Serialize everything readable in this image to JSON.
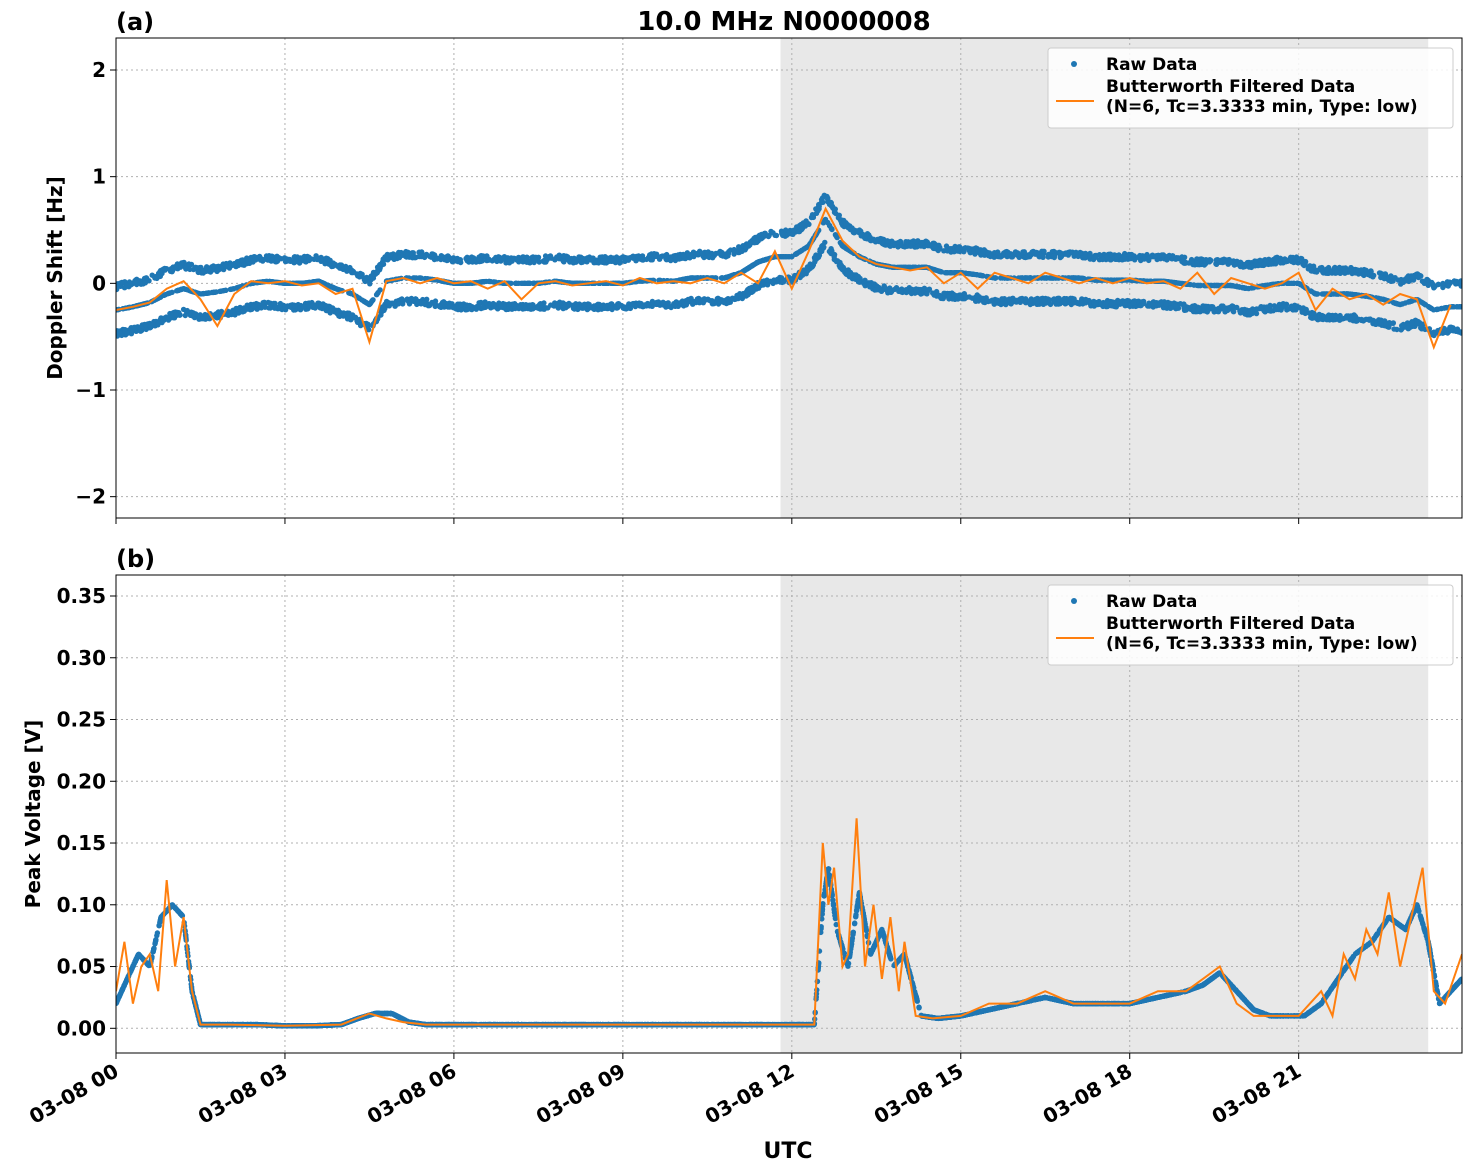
{
  "figure": {
    "title": "10.0 MHz N0000008",
    "xlabel": "UTC"
  },
  "colors": {
    "raw": "#1f77b4",
    "filtered": "#ff7f0e",
    "shade": "#e8e8e8",
    "grid": "#b0b0b0"
  },
  "chart_data": [
    {
      "type": "scatter",
      "panel_label": "(a)",
      "ylabel": "Doppler Shift [Hz]",
      "x_unit": "hours UTC on 03-08",
      "xlim": [
        0,
        23.9
      ],
      "ylim": [
        -2.2,
        2.3
      ],
      "xticks": [
        0,
        3,
        6,
        9,
        12,
        15,
        18,
        21
      ],
      "xtick_labels": [
        "03-08 00",
        "03-08 03",
        "03-08 06",
        "03-08 09",
        "03-08 12",
        "03-08 15",
        "03-08 18",
        "03-08 21"
      ],
      "yticks": [
        -2,
        -1,
        0,
        1,
        2
      ],
      "ytick_labels": [
        "−2",
        "−1",
        "0",
        "1",
        "2"
      ],
      "grid": true,
      "legend_position": "top-right",
      "shaded_interval": [
        11.8,
        23.3
      ],
      "series": [
        {
          "name": "Raw Data",
          "kind": "scatter",
          "x": [
            0.0,
            0.3,
            0.6,
            0.9,
            1.2,
            1.5,
            1.8,
            2.1,
            2.4,
            2.7,
            3.0,
            3.3,
            3.6,
            3.9,
            4.2,
            4.5,
            4.8,
            5.1,
            5.4,
            5.7,
            6.0,
            6.3,
            6.6,
            6.9,
            7.2,
            7.5,
            7.8,
            8.1,
            8.4,
            8.7,
            9.0,
            9.3,
            9.6,
            9.9,
            10.2,
            10.5,
            10.8,
            11.1,
            11.4,
            11.7,
            12.0,
            12.3,
            12.6,
            12.9,
            13.2,
            13.5,
            13.8,
            14.1,
            14.4,
            14.7,
            15.0,
            15.3,
            15.6,
            15.9,
            16.2,
            16.5,
            16.8,
            17.1,
            17.4,
            17.7,
            18.0,
            18.3,
            18.6,
            18.9,
            19.2,
            19.5,
            19.8,
            20.1,
            20.4,
            20.7,
            21.0,
            21.3,
            21.6,
            21.9,
            22.2,
            22.5,
            22.8,
            23.1,
            23.4,
            23.7
          ],
          "center": [
            -0.25,
            -0.22,
            -0.18,
            -0.1,
            -0.05,
            -0.1,
            -0.08,
            -0.05,
            0.0,
            0.02,
            0.0,
            0.0,
            0.02,
            -0.05,
            -0.1,
            -0.2,
            0.02,
            0.05,
            0.05,
            0.03,
            0.0,
            0.0,
            0.02,
            0.0,
            0.0,
            0.0,
            0.02,
            0.0,
            0.0,
            0.0,
            0.0,
            0.02,
            0.03,
            0.02,
            0.05,
            0.05,
            0.05,
            0.1,
            0.2,
            0.25,
            0.25,
            0.35,
            0.6,
            0.35,
            0.25,
            0.18,
            0.15,
            0.15,
            0.15,
            0.1,
            0.1,
            0.08,
            0.05,
            0.05,
            0.05,
            0.05,
            0.05,
            0.05,
            0.03,
            0.03,
            0.03,
            0.02,
            0.02,
            0.0,
            -0.02,
            -0.02,
            -0.02,
            -0.05,
            -0.02,
            0.0,
            0.0,
            -0.1,
            -0.1,
            -0.1,
            -0.12,
            -0.15,
            -0.2,
            -0.15,
            -0.25,
            -0.22
          ],
          "spread": [
            0.15,
            0.15,
            0.18,
            0.2,
            0.25,
            0.8,
            0.9,
            0.9,
            1.0,
            0.8,
            0.7,
            0.75,
            0.7,
            0.75,
            0.8,
            0.9,
            0.75,
            0.8,
            0.9,
            0.85,
            0.75,
            0.8,
            1.0,
            0.95,
            0.75,
            0.7,
            0.75,
            0.8,
            0.8,
            0.7,
            0.7,
            0.8,
            0.8,
            0.8,
            0.8,
            0.8,
            0.8,
            0.9,
            1.0,
            1.1,
            1.0,
            1.1,
            0.55,
            0.25,
            0.15,
            0.12,
            0.1,
            0.1,
            0.35,
            0.4,
            0.4,
            0.35,
            0.3,
            0.3,
            0.3,
            0.3,
            0.3,
            0.25,
            0.25,
            0.25,
            0.25,
            0.25,
            0.22,
            0.22,
            0.22,
            0.22,
            0.22,
            0.22,
            0.22,
            0.25,
            0.3,
            0.25,
            0.2,
            0.2,
            0.2,
            0.2,
            0.2,
            0.2,
            0.25,
            0.15
          ]
        },
        {
          "name": "Butterworth Filtered Data\n(N=6, Tc=3.3333 min, Type: low)",
          "kind": "line",
          "x": [
            0.0,
            0.3,
            0.6,
            0.9,
            1.2,
            1.5,
            1.8,
            2.1,
            2.4,
            2.7,
            3.0,
            3.3,
            3.6,
            3.9,
            4.2,
            4.5,
            4.8,
            5.1,
            5.4,
            5.7,
            6.0,
            6.3,
            6.6,
            6.9,
            7.2,
            7.5,
            7.8,
            8.1,
            8.4,
            8.7,
            9.0,
            9.3,
            9.6,
            9.9,
            10.2,
            10.5,
            10.8,
            11.1,
            11.4,
            11.7,
            12.0,
            12.3,
            12.6,
            12.9,
            13.2,
            13.5,
            13.8,
            14.1,
            14.4,
            14.7,
            15.0,
            15.3,
            15.6,
            15.9,
            16.2,
            16.5,
            16.8,
            17.1,
            17.4,
            17.7,
            18.0,
            18.3,
            18.6,
            18.9,
            19.2,
            19.5,
            19.8,
            20.1,
            20.4,
            20.7,
            21.0,
            21.3,
            21.6,
            21.9,
            22.2,
            22.5,
            22.8,
            23.1,
            23.4,
            23.7
          ],
          "y": [
            -0.25,
            -0.22,
            -0.18,
            -0.05,
            0.02,
            -0.15,
            -0.4,
            -0.1,
            0.02,
            0.0,
            0.02,
            -0.02,
            0.0,
            -0.1,
            -0.05,
            -0.55,
            0.02,
            0.05,
            0.0,
            0.05,
            0.0,
            0.02,
            -0.05,
            0.02,
            -0.15,
            0.0,
            0.02,
            -0.02,
            0.0,
            0.02,
            -0.02,
            0.05,
            0.0,
            0.02,
            0.0,
            0.05,
            0.0,
            0.1,
            0.0,
            0.3,
            -0.05,
            0.3,
            0.7,
            0.4,
            0.25,
            0.18,
            0.15,
            0.12,
            0.15,
            0.0,
            0.1,
            -0.05,
            0.1,
            0.05,
            0.0,
            0.1,
            0.05,
            0.0,
            0.05,
            0.0,
            0.05,
            0.0,
            0.02,
            -0.05,
            0.1,
            -0.1,
            0.05,
            0.0,
            -0.05,
            0.0,
            0.1,
            -0.25,
            -0.05,
            -0.15,
            -0.1,
            -0.2,
            -0.1,
            -0.15,
            -0.6,
            -0.2
          ]
        }
      ]
    },
    {
      "type": "scatter",
      "panel_label": "(b)",
      "ylabel": "Peak Voltage [V]",
      "x_unit": "hours UTC on 03-08",
      "xlim": [
        0,
        23.9
      ],
      "ylim": [
        -0.02,
        0.367
      ],
      "xticks": [
        0,
        3,
        6,
        9,
        12,
        15,
        18,
        21
      ],
      "xtick_labels": [
        "03-08 00",
        "03-08 03",
        "03-08 06",
        "03-08 09",
        "03-08 12",
        "03-08 15",
        "03-08 18",
        "03-08 21"
      ],
      "yticks": [
        0.0,
        0.05,
        0.1,
        0.15,
        0.2,
        0.25,
        0.3,
        0.35
      ],
      "ytick_labels": [
        "0.00",
        "0.05",
        "0.10",
        "0.15",
        "0.20",
        "0.25",
        "0.30",
        "0.35"
      ],
      "grid": true,
      "legend_position": "top-right",
      "shaded_interval": [
        11.8,
        23.3
      ],
      "series": [
        {
          "name": "Raw Data",
          "kind": "scatter",
          "x": [
            0.0,
            0.2,
            0.4,
            0.6,
            0.8,
            1.0,
            1.2,
            1.35,
            1.5,
            2.0,
            2.5,
            3.0,
            3.5,
            4.0,
            4.3,
            4.6,
            4.9,
            5.2,
            5.5,
            6.0,
            7.0,
            8.0,
            9.0,
            10.0,
            11.0,
            11.8,
            12.4,
            12.55,
            12.65,
            12.8,
            13.0,
            13.2,
            13.4,
            13.6,
            13.8,
            14.0,
            14.3,
            14.6,
            15.0,
            15.5,
            16.0,
            16.5,
            17.0,
            17.5,
            18.0,
            18.5,
            19.0,
            19.3,
            19.6,
            19.9,
            20.2,
            20.5,
            20.8,
            21.1,
            21.4,
            21.7,
            22.0,
            22.3,
            22.6,
            22.9,
            23.1,
            23.3,
            23.5,
            23.7,
            23.9
          ],
          "center": [
            0.02,
            0.04,
            0.06,
            0.05,
            0.09,
            0.1,
            0.09,
            0.03,
            0.003,
            0.003,
            0.003,
            0.002,
            0.002,
            0.003,
            0.008,
            0.012,
            0.012,
            0.005,
            0.003,
            0.003,
            0.003,
            0.003,
            0.003,
            0.003,
            0.003,
            0.003,
            0.003,
            0.1,
            0.13,
            0.08,
            0.05,
            0.11,
            0.06,
            0.08,
            0.05,
            0.06,
            0.01,
            0.008,
            0.01,
            0.015,
            0.02,
            0.025,
            0.02,
            0.02,
            0.02,
            0.025,
            0.03,
            0.035,
            0.045,
            0.03,
            0.015,
            0.01,
            0.01,
            0.01,
            0.02,
            0.04,
            0.06,
            0.07,
            0.09,
            0.08,
            0.1,
            0.07,
            0.02,
            0.03,
            0.04
          ],
          "spread": [
            0.02,
            0.05,
            0.07,
            0.07,
            0.1,
            0.11,
            0.12,
            0.04,
            0.003,
            0.002,
            0.002,
            0.002,
            0.002,
            0.003,
            0.008,
            0.012,
            0.012,
            0.004,
            0.002,
            0.002,
            0.002,
            0.002,
            0.002,
            0.002,
            0.002,
            0.002,
            0.003,
            0.16,
            0.21,
            0.13,
            0.08,
            0.14,
            0.07,
            0.09,
            0.07,
            0.07,
            0.012,
            0.012,
            0.02,
            0.025,
            0.03,
            0.035,
            0.03,
            0.035,
            0.035,
            0.04,
            0.04,
            0.045,
            0.05,
            0.04,
            0.025,
            0.015,
            0.015,
            0.02,
            0.035,
            0.07,
            0.09,
            0.1,
            0.12,
            0.11,
            0.14,
            0.1,
            0.035,
            0.045,
            0.05
          ]
        },
        {
          "name": "Butterworth Filtered Data\n(N=6, Tc=3.3333 min, Type: low)",
          "kind": "line",
          "x": [
            0.0,
            0.15,
            0.3,
            0.45,
            0.6,
            0.75,
            0.9,
            1.05,
            1.2,
            1.35,
            1.5,
            2.0,
            3.0,
            4.0,
            4.5,
            4.8,
            5.1,
            5.5,
            6.0,
            7.0,
            8.0,
            9.0,
            10.0,
            11.0,
            11.8,
            12.4,
            12.55,
            12.65,
            12.75,
            12.9,
            13.0,
            13.15,
            13.3,
            13.45,
            13.6,
            13.75,
            13.9,
            14.0,
            14.2,
            14.5,
            15.0,
            15.5,
            16.0,
            16.5,
            17.0,
            17.5,
            18.0,
            18.5,
            19.0,
            19.3,
            19.6,
            19.9,
            20.2,
            20.5,
            20.8,
            21.0,
            21.2,
            21.4,
            21.6,
            21.8,
            22.0,
            22.2,
            22.4,
            22.6,
            22.8,
            23.0,
            23.2,
            23.4,
            23.6,
            23.9
          ],
          "y": [
            0.03,
            0.07,
            0.02,
            0.05,
            0.06,
            0.03,
            0.12,
            0.05,
            0.09,
            0.03,
            0.003,
            0.003,
            0.002,
            0.003,
            0.012,
            0.008,
            0.005,
            0.003,
            0.003,
            0.003,
            0.003,
            0.003,
            0.003,
            0.003,
            0.003,
            0.003,
            0.15,
            0.1,
            0.13,
            0.05,
            0.06,
            0.17,
            0.05,
            0.1,
            0.04,
            0.09,
            0.03,
            0.07,
            0.01,
            0.008,
            0.01,
            0.02,
            0.02,
            0.03,
            0.02,
            0.02,
            0.02,
            0.03,
            0.03,
            0.04,
            0.05,
            0.02,
            0.01,
            0.01,
            0.01,
            0.01,
            0.02,
            0.03,
            0.01,
            0.06,
            0.04,
            0.08,
            0.06,
            0.11,
            0.05,
            0.09,
            0.13,
            0.03,
            0.02,
            0.06
          ]
        }
      ]
    }
  ]
}
